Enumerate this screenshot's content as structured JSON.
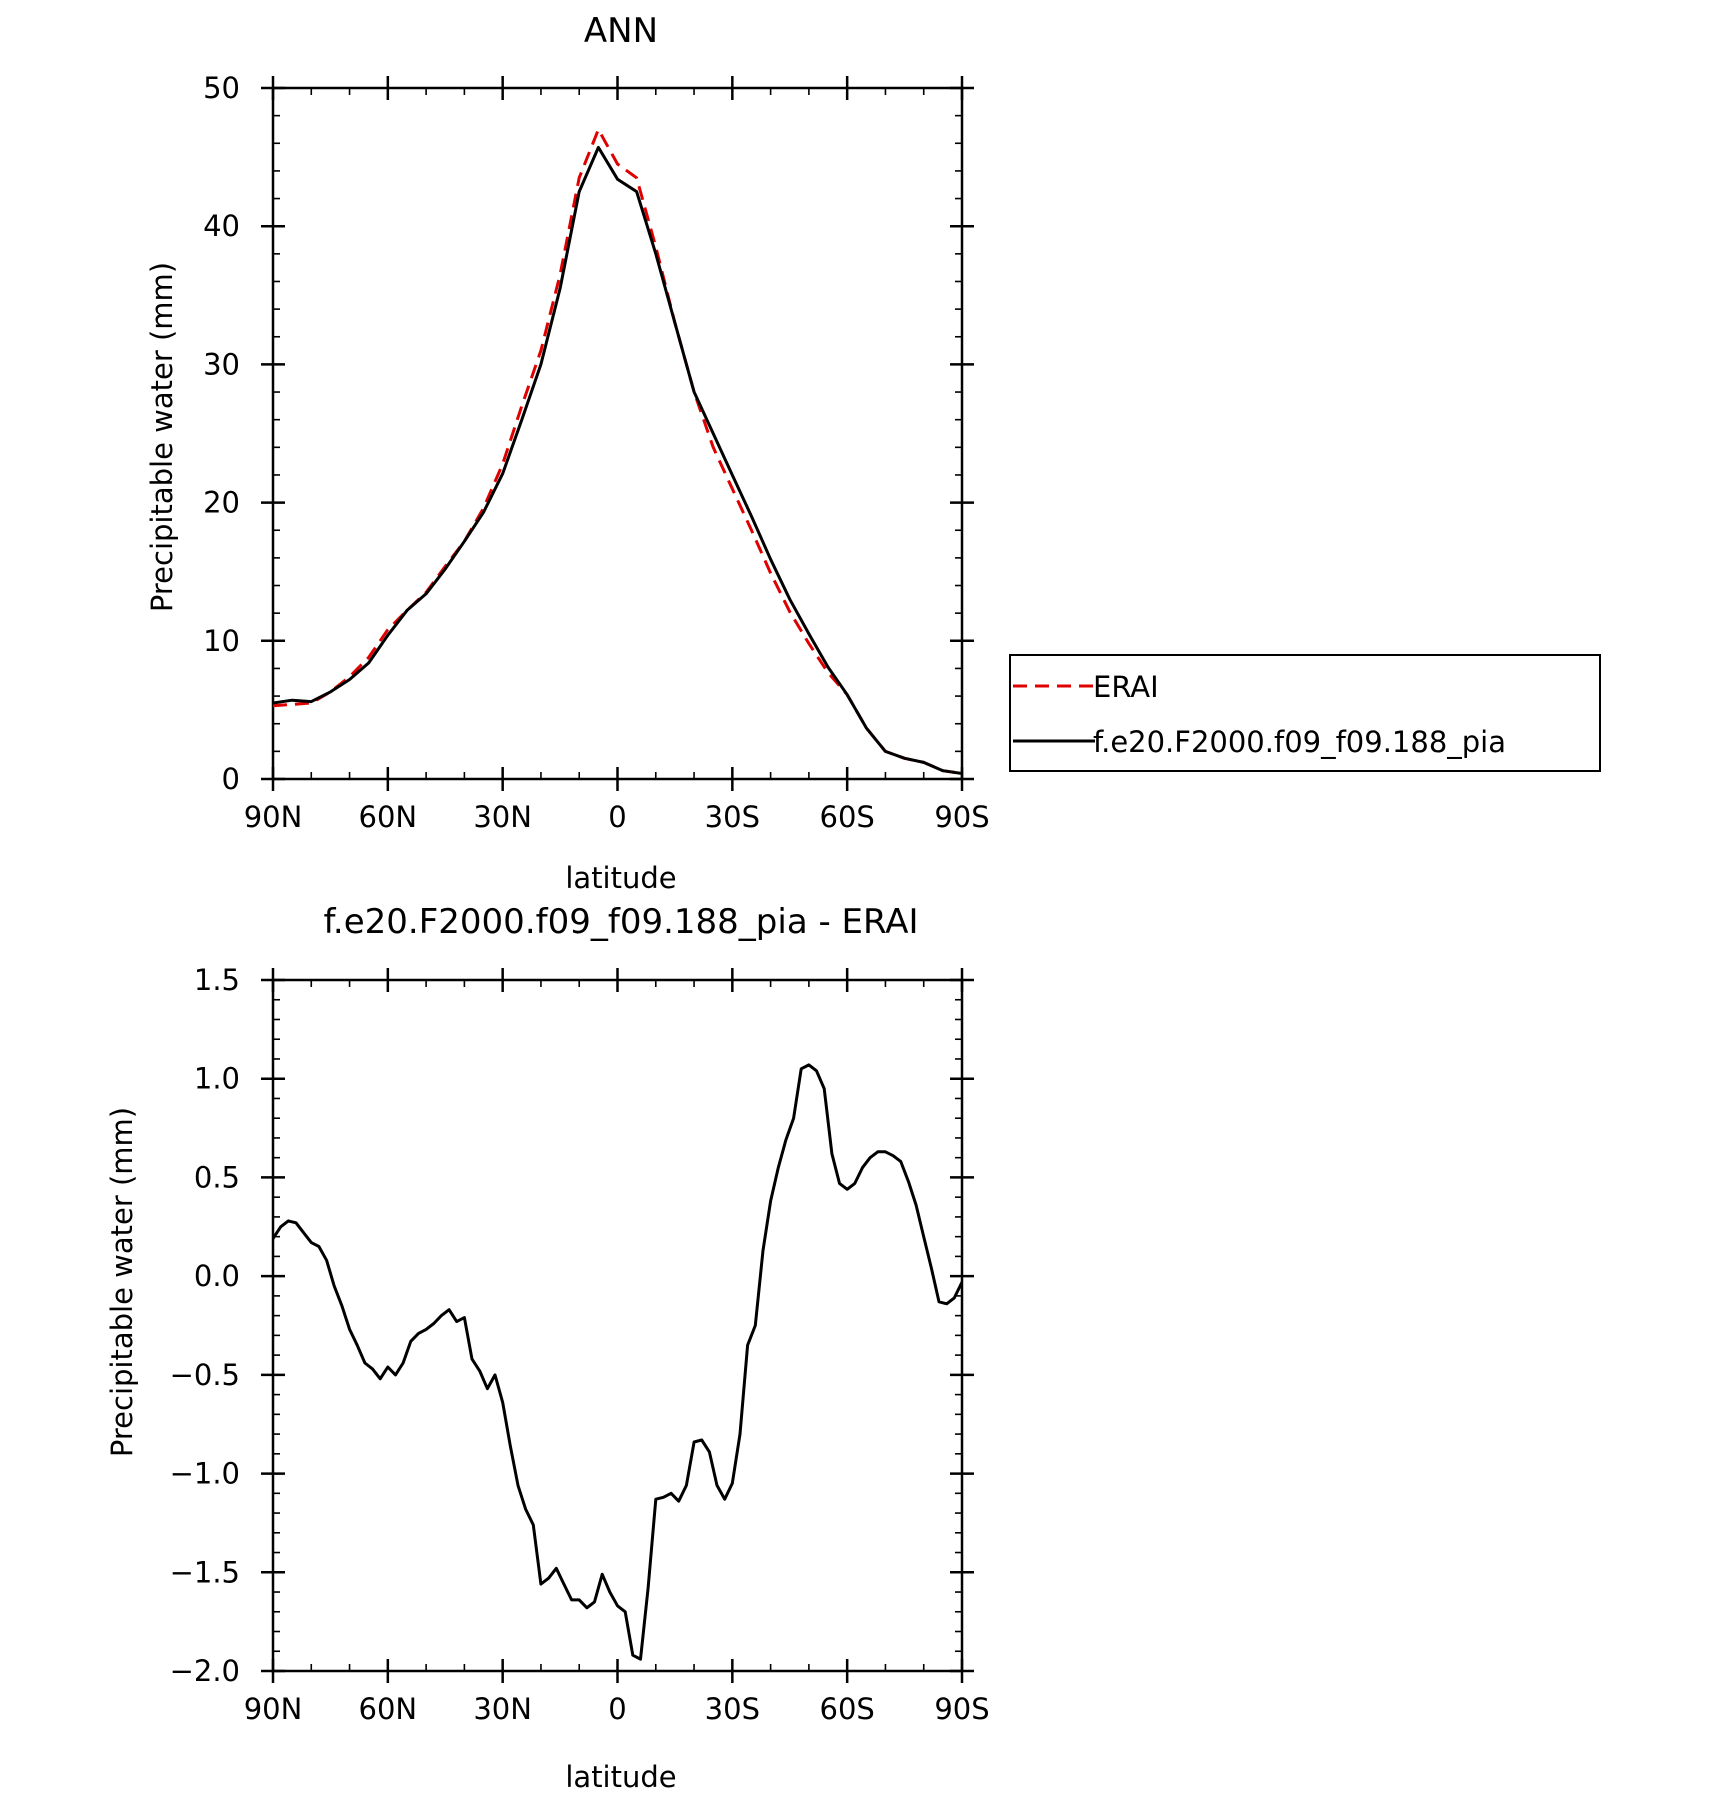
{
  "chart_data": [
    {
      "type": "line",
      "title": "ANN",
      "xlabel": "latitude",
      "ylabel": "Precipitable water (mm)",
      "xlim": [
        90,
        -90
      ],
      "ylim": [
        0,
        50
      ],
      "xticks": [
        90,
        60,
        30,
        0,
        -30,
        -60,
        -90
      ],
      "xtick_labels": [
        "90N",
        "60N",
        "30N",
        "0",
        "30S",
        "60S",
        "90S"
      ],
      "yticks": [
        0,
        10,
        20,
        30,
        40,
        50
      ],
      "ytick_labels": [
        "0",
        "10",
        "20",
        "30",
        "40",
        "50"
      ],
      "legend_position": "right",
      "series": [
        {
          "name": "ERAI",
          "color": "#e00000",
          "style": "dashed",
          "x": [
            90,
            85,
            80,
            75,
            70,
            65,
            60,
            55,
            50,
            45,
            40,
            35,
            30,
            25,
            20,
            15,
            10,
            5,
            0,
            -5,
            -10,
            -15,
            -20,
            -25,
            -30,
            -35,
            -40,
            -45,
            -50,
            -55,
            -60,
            -65,
            -70,
            -75,
            -80,
            -85,
            -90
          ],
          "y": [
            5.3,
            5.4,
            5.5,
            6.3,
            7.4,
            8.8,
            10.8,
            12.2,
            13.5,
            15.4,
            17.2,
            19.6,
            22.8,
            27.0,
            31.0,
            36.5,
            43.5,
            47.0,
            44.5,
            43.5,
            38.5,
            33.0,
            28.0,
            24.0,
            21.0,
            18.0,
            14.9,
            12.1,
            9.8,
            7.7,
            6.1,
            3.7,
            2.0,
            1.5,
            1.2,
            0.6,
            0.4
          ]
        },
        {
          "name": "f.e20.F2000.f09_f09.188_pia",
          "color": "#000000",
          "style": "solid",
          "x": [
            90,
            85,
            80,
            75,
            70,
            65,
            60,
            55,
            50,
            45,
            40,
            35,
            30,
            25,
            20,
            15,
            10,
            5,
            0,
            -5,
            -10,
            -15,
            -20,
            -25,
            -30,
            -35,
            -40,
            -45,
            -50,
            -55,
            -60,
            -65,
            -70,
            -75,
            -80,
            -85,
            -90
          ],
          "y": [
            5.5,
            5.7,
            5.6,
            6.3,
            7.2,
            8.4,
            10.4,
            12.2,
            13.4,
            15.2,
            17.2,
            19.3,
            22.1,
            26.0,
            30.0,
            35.5,
            42.5,
            45.7,
            43.4,
            42.5,
            38.0,
            33.0,
            28.0,
            25.0,
            22.0,
            19.0,
            15.9,
            13.0,
            10.5,
            8.1,
            6.1,
            3.7,
            2.0,
            1.5,
            1.2,
            0.6,
            0.4
          ]
        }
      ]
    },
    {
      "type": "line",
      "title": "f.e20.F2000.f09_f09.188_pia - ERAI",
      "xlabel": "latitude",
      "ylabel": "Precipitable water (mm)",
      "xlim": [
        90,
        -90
      ],
      "ylim": [
        -2.0,
        1.5
      ],
      "xticks": [
        90,
        60,
        30,
        0,
        -30,
        -60,
        -90
      ],
      "xtick_labels": [
        "90N",
        "60N",
        "30N",
        "0",
        "30S",
        "60S",
        "90S"
      ],
      "yticks": [
        -2.0,
        -1.5,
        -1.0,
        -0.5,
        0.0,
        0.5,
        1.0,
        1.5
      ],
      "ytick_labels": [
        "-2.0",
        "-1.5",
        "-1.0",
        "-0.5",
        "0.0",
        "0.5",
        "1.0",
        "1.5"
      ],
      "series": [
        {
          "name": "",
          "color": "#000000",
          "style": "solid",
          "x": [
            90,
            88,
            86,
            84,
            82,
            80,
            78,
            76,
            74,
            72,
            70,
            68,
            66,
            64,
            62,
            60,
            58,
            56,
            54,
            52,
            50,
            48,
            46,
            44,
            42,
            40,
            38,
            36,
            34,
            32,
            30,
            28,
            26,
            24,
            22,
            20,
            18,
            16,
            14,
            12,
            10,
            8,
            6,
            4,
            2,
            0,
            -2,
            -4,
            -6,
            -8,
            -10,
            -12,
            -14,
            -16,
            -18,
            -20,
            -22,
            -24,
            -26,
            -28,
            -30,
            -32,
            -34,
            -36,
            -38,
            -40,
            -42,
            -44,
            -46,
            -48,
            -50,
            -52,
            -54,
            -56,
            -58,
            -60,
            -62,
            -64,
            -66,
            -68,
            -70,
            -72,
            -74,
            -76,
            -78,
            -80,
            -82,
            -84,
            -86,
            -88,
            -90
          ],
          "y": [
            0.19,
            0.25,
            0.28,
            0.27,
            0.22,
            0.17,
            0.15,
            0.08,
            -0.05,
            -0.15,
            -0.27,
            -0.35,
            -0.44,
            -0.47,
            -0.52,
            -0.46,
            -0.5,
            -0.44,
            -0.33,
            -0.29,
            -0.27,
            -0.24,
            -0.2,
            -0.17,
            -0.23,
            -0.21,
            -0.42,
            -0.48,
            -0.57,
            -0.5,
            -0.64,
            -0.86,
            -1.06,
            -1.18,
            -1.26,
            -1.56,
            -1.53,
            -1.48,
            -1.56,
            -1.64,
            -1.64,
            -1.68,
            -1.65,
            -1.51,
            -1.6,
            -1.67,
            -1.7,
            -1.92,
            -1.94,
            -1.58,
            -1.13,
            -1.12,
            -1.1,
            -1.14,
            -1.06,
            -0.84,
            -0.83,
            -0.89,
            -1.06,
            -1.13,
            -1.05,
            -0.8,
            -0.35,
            -0.25,
            0.13,
            0.38,
            0.55,
            0.69,
            0.8,
            1.05,
            1.07,
            1.04,
            0.95,
            0.62,
            0.47,
            0.44,
            0.47,
            0.55,
            0.6,
            0.63,
            0.63,
            0.61,
            0.58,
            0.48,
            0.36,
            0.2,
            0.04,
            -0.13,
            -0.14,
            -0.11,
            -0.03
          ]
        }
      ]
    }
  ]
}
